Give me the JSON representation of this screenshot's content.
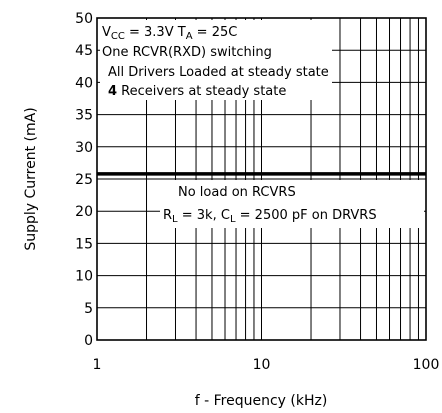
{
  "chart_data": {
    "type": "line",
    "xlabel": "f - Frequency (kHz)",
    "ylabel": "Supply Current (mA)",
    "xscale": "log",
    "xlim": [
      1,
      100
    ],
    "ylim": [
      0,
      50
    ],
    "x_ticks": [
      "1",
      "10",
      "100"
    ],
    "y_ticks": [
      "0",
      "5",
      "10",
      "15",
      "20",
      "25",
      "30",
      "35",
      "40",
      "45",
      "50"
    ],
    "grid": true,
    "series": [
      {
        "x": [
          1,
          100
        ],
        "values": [
          25.8,
          25.8
        ]
      }
    ],
    "annotations_top": {
      "line1": {
        "v": "V",
        "v_sub": "CC",
        "mid": " = 3.3V  T",
        "t_sub": "A",
        "end": " = 25C"
      },
      "line2": "One RCVR(RXD) switching",
      "line3": "All Drivers Loaded at steady state",
      "line4_bold": "4",
      "line4_rest": " Receivers at steady state"
    },
    "annotations_bottom": {
      "line1": "No load on RCVRS",
      "line2": {
        "r": "R",
        "r_sub": "L",
        "mid": " = 3k,  C",
        "c_sub": "L",
        "end": " = 2500 pF  on DRVRS"
      }
    }
  }
}
